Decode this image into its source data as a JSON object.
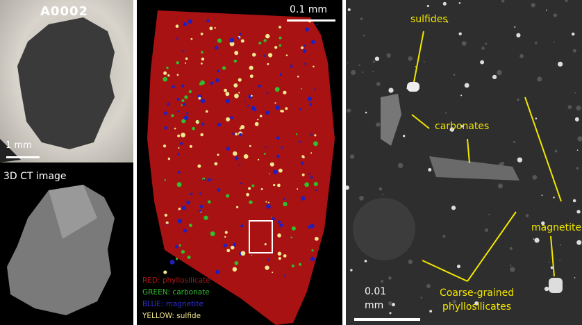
{
  "photo": {
    "sample_id": "A0002",
    "scale": "1 mm"
  },
  "ct": {
    "title": "3D CT image"
  },
  "map": {
    "scale": "0.1 mm",
    "legend": [
      {
        "label": "RED: phyllosilicate",
        "color": "#b01515"
      },
      {
        "label": "GREEN: carbonate",
        "color": "#2fbf2f"
      },
      {
        "label": "BLUE: magnetite",
        "color": "#2020c0"
      },
      {
        "label": "YELLOW: sulfide",
        "color": "#f0e890"
      }
    ]
  },
  "sem": {
    "scale_value": "0.01",
    "scale_unit": "mm",
    "labels": {
      "sulfides": "sulfides",
      "carbonates": "carbonates",
      "magnetite": "magnetite",
      "coarse1": "Coarse-grained",
      "coarse2": "phyllosilicates"
    },
    "label_color": "#f2e600"
  }
}
